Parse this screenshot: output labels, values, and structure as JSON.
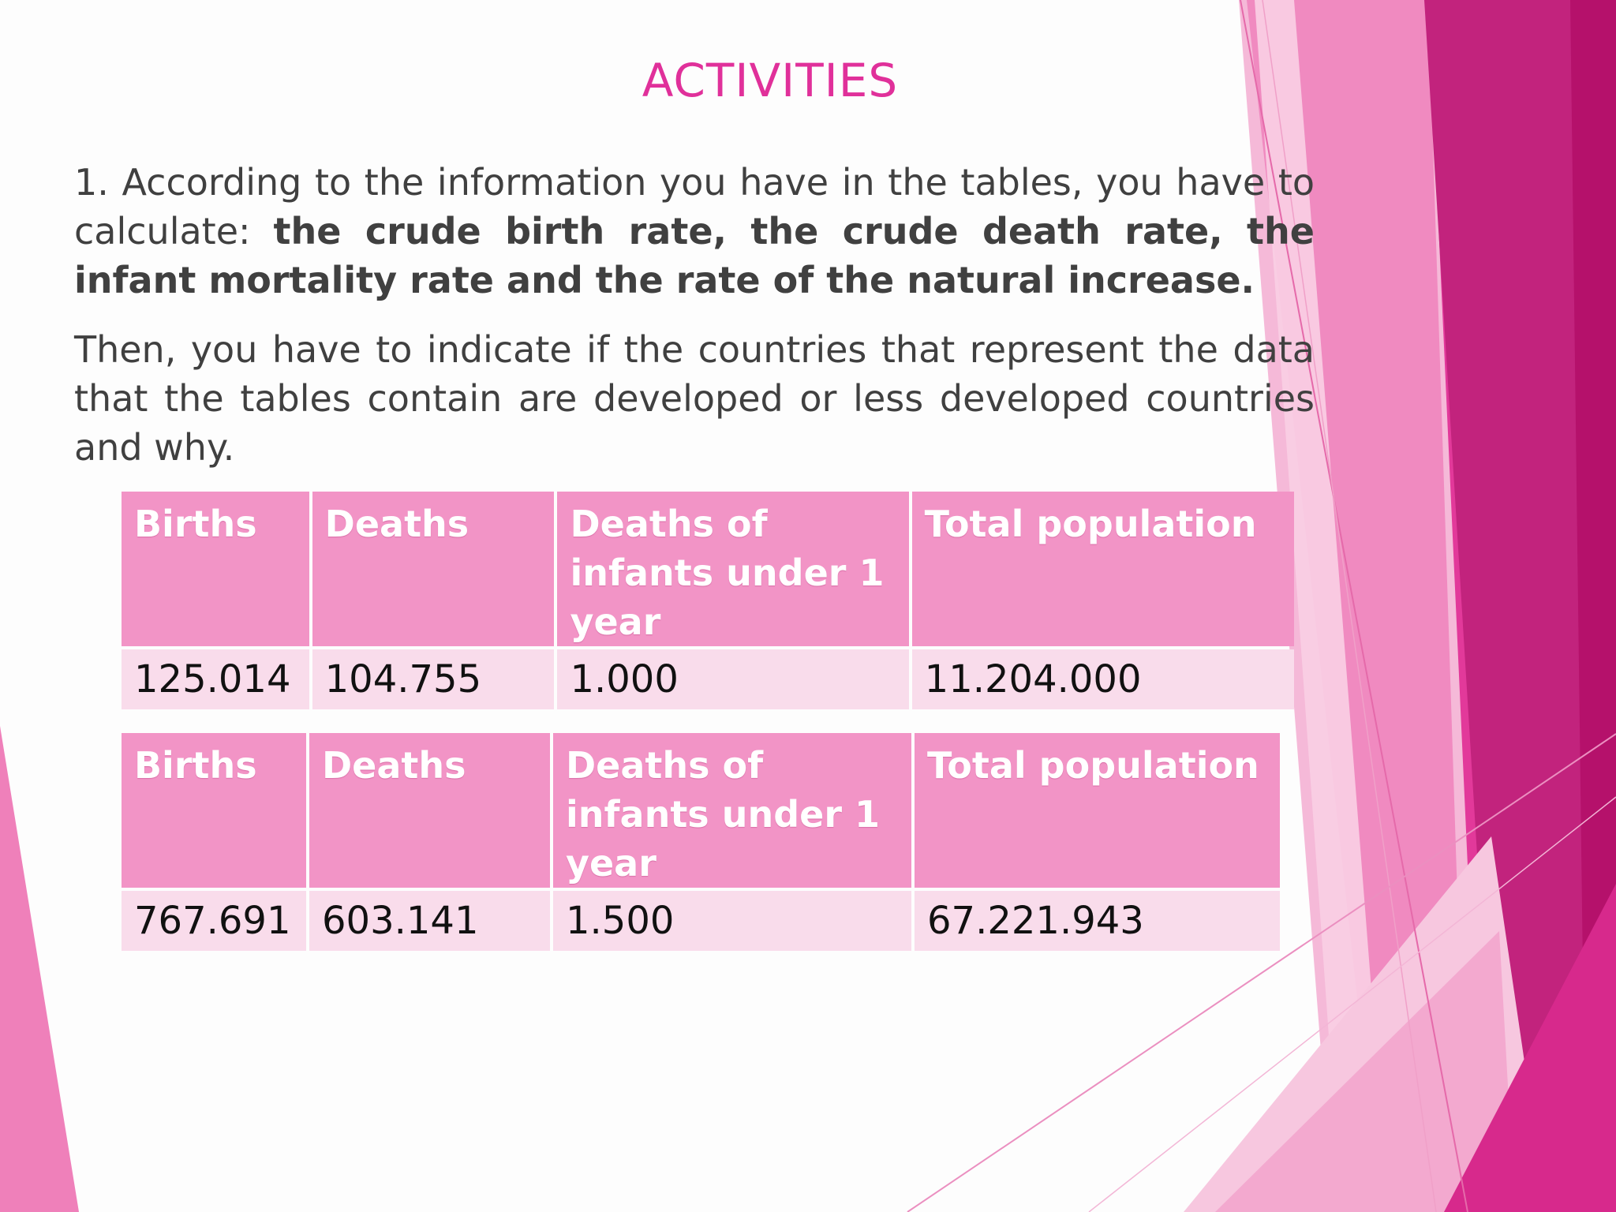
{
  "slide": {
    "title": "ACTIVITIES",
    "paragraph1": {
      "lead": "1. According to the information you have in the tables, you have to calculate: ",
      "bold": "the crude birth rate, the crude death rate, the infant mortality rate and the rate of the natural increase."
    },
    "paragraph2": "Then, you have to indicate if the countries that represent the data that the tables contain are developed or less developed countries and why."
  },
  "tables": [
    {
      "headers": [
        "Births",
        "Deaths",
        "Deaths of infants under 1 year",
        "Total population"
      ],
      "row": [
        "125.014",
        "104.755",
        "1.000",
        "11.204.000"
      ]
    },
    {
      "headers": [
        "Births",
        "Deaths",
        "Deaths of infants under 1 year",
        "Total population"
      ],
      "row": [
        "767.691",
        "603.141",
        "1.500",
        "67.221.943"
      ]
    }
  ],
  "theme": {
    "accent": "#e0309a",
    "header_fill": "#f294c6",
    "row_fill": "#f9dceb",
    "text": "#404040",
    "magenta_dark": "#b5116b"
  }
}
